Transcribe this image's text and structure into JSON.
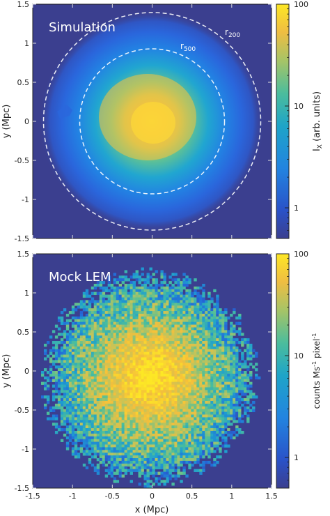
{
  "chart_data": [
    {
      "type": "heatmap",
      "title": "Simulation",
      "xlabel": "",
      "ylabel": "y (Mpc)",
      "xlim": [
        -1.5,
        1.5
      ],
      "ylim": [
        -1.5,
        1.5
      ],
      "xticks": [
        "-1.5",
        "-1",
        "-0.5",
        "0",
        "0.5",
        "1",
        "1.5"
      ],
      "yticks": [
        "1.5",
        "1",
        "0.5",
        "0",
        "-0.5",
        "-1",
        "-1.5"
      ],
      "colorbar": {
        "label": "I_X (arb. units)",
        "label_main": "I",
        "label_sub": "X",
        "label_rest": " (arb. units)",
        "scale": "log",
        "range": [
          0.5,
          100
        ],
        "ticks": [
          "100",
          "10",
          "1"
        ],
        "tick_values": [
          100,
          10,
          1
        ]
      },
      "annotations": [
        {
          "text": "r",
          "sub": "200",
          "kind": "circle",
          "radius_mpc": 1.4
        },
        {
          "text": "r",
          "sub": "500",
          "kind": "circle",
          "radius_mpc": 0.92
        }
      ],
      "colormap": [
        "#3b3f8f",
        "#2466d9",
        "#1e9fd0",
        "#4dbf9a",
        "#c3c45a",
        "#f5bf3b",
        "#fde725"
      ],
      "grid": false
    },
    {
      "type": "heatmap",
      "title": "Mock LEM",
      "xlabel": "x (Mpc)",
      "ylabel": "y (Mpc)",
      "xlim": [
        -1.5,
        1.5
      ],
      "ylim": [
        -1.5,
        1.5
      ],
      "xticks": [
        "-1.5",
        "-1",
        "-0.5",
        "0",
        "0.5",
        "1",
        "1.5"
      ],
      "yticks": [
        "1.5",
        "1",
        "0.5",
        "0",
        "-0.5",
        "-1",
        "-1.5"
      ],
      "colorbar": {
        "label": "counts Ms^-1 pixel^-1",
        "scale": "log",
        "range": [
          0.5,
          100
        ],
        "ticks": [
          "100",
          "10",
          "1"
        ],
        "tick_values": [
          100,
          10,
          1
        ]
      },
      "colormap": [
        "#3b3f8f",
        "#2466d9",
        "#1e9fd0",
        "#4dbf9a",
        "#c3c45a",
        "#f5bf3b",
        "#fde725"
      ],
      "grid": false
    }
  ]
}
